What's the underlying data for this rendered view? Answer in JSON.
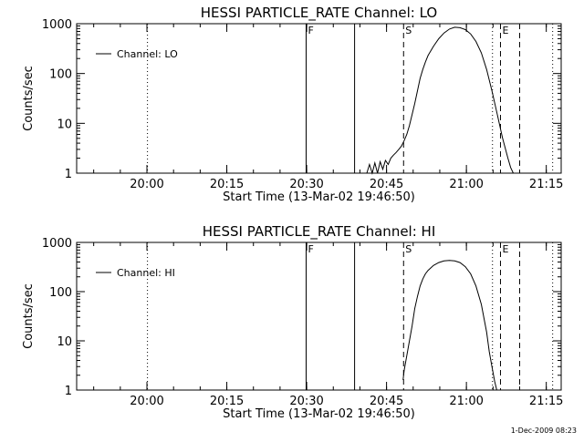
{
  "stamp": "1-Dec-2009 08:23",
  "chart_data": [
    {
      "type": "line",
      "title": "HESSI PARTICLE_RATE Channel: LO",
      "xlabel": "Start Time (13-Mar-02 19:46:50)",
      "ylabel": "Counts/sec",
      "y_scale": "log",
      "ylim": [
        1,
        1000
      ],
      "y_ticks": [
        "1",
        "10",
        "100",
        "1000"
      ],
      "x_unit": "minutes after 19:46:50",
      "xlim": [
        0,
        91
      ],
      "x_ticks": [
        {
          "label": "20:00",
          "value": 13.2
        },
        {
          "label": "20:15",
          "value": 28.2
        },
        {
          "label": "20:30",
          "value": 43.2
        },
        {
          "label": "20:45",
          "value": 58.2
        },
        {
          "label": "21:00",
          "value": 73.2
        },
        {
          "label": "21:15",
          "value": 88.2
        }
      ],
      "legend": {
        "label": "Channel: LO",
        "position": "top-left"
      },
      "markers": [
        {
          "value": 13.3,
          "style": "dotted",
          "label": ""
        },
        {
          "value": 43.1,
          "style": "solid",
          "label": "F"
        },
        {
          "value": 52.2,
          "style": "solid",
          "label": ""
        },
        {
          "value": 61.4,
          "style": "dashed",
          "label": "S"
        },
        {
          "value": 78.1,
          "style": "dotted",
          "label": ""
        },
        {
          "value": 79.6,
          "style": "dashed",
          "label": "E"
        },
        {
          "value": 83.2,
          "style": "dashed",
          "label": ""
        },
        {
          "value": 89.4,
          "style": "dotted",
          "label": ""
        }
      ],
      "series": [
        {
          "x": [
            54.5,
            55.0,
            55.5,
            56.0,
            56.5,
            57.0,
            57.5,
            58.0,
            58.5,
            59.0,
            59.5,
            60.0,
            60.5,
            61.0,
            61.5,
            62.0,
            62.5,
            63.0,
            63.5,
            64.0,
            64.5,
            65.0,
            65.5,
            66.0,
            67.0,
            68.0,
            69.0,
            70.0,
            71.0,
            72.0,
            73.0,
            74.0,
            75.0,
            76.0,
            77.0,
            78.0,
            79.0,
            80.0,
            81.0,
            81.5,
            82.0
          ],
          "y": [
            1,
            1.5,
            1,
            1.6,
            1,
            1.7,
            1.2,
            1.8,
            1.5,
            2.0,
            2.3,
            2.6,
            3.0,
            3.5,
            4.5,
            6,
            9,
            15,
            25,
            45,
            80,
            120,
            170,
            230,
            350,
            500,
            650,
            780,
            850,
            830,
            760,
            620,
            440,
            260,
            120,
            45,
            15,
            5,
            2,
            1.3,
            1
          ]
        }
      ]
    },
    {
      "type": "line",
      "title": "HESSI PARTICLE_RATE Channel: HI",
      "xlabel": "Start Time (13-Mar-02 19:46:50)",
      "ylabel": "Counts/sec",
      "y_scale": "log",
      "ylim": [
        1,
        1000
      ],
      "y_ticks": [
        "1",
        "10",
        "100",
        "1000"
      ],
      "x_unit": "minutes after 19:46:50",
      "xlim": [
        0,
        91
      ],
      "x_ticks": [
        {
          "label": "20:00",
          "value": 13.2
        },
        {
          "label": "20:15",
          "value": 28.2
        },
        {
          "label": "20:30",
          "value": 43.2
        },
        {
          "label": "20:45",
          "value": 58.2
        },
        {
          "label": "21:00",
          "value": 73.2
        },
        {
          "label": "21:15",
          "value": 88.2
        }
      ],
      "legend": {
        "label": "Channel: HI",
        "position": "top-left"
      },
      "markers": [
        {
          "value": 13.3,
          "style": "dotted",
          "label": ""
        },
        {
          "value": 43.1,
          "style": "solid",
          "label": "F"
        },
        {
          "value": 52.2,
          "style": "solid",
          "label": ""
        },
        {
          "value": 61.4,
          "style": "dashed",
          "label": "S"
        },
        {
          "value": 78.1,
          "style": "dotted",
          "label": ""
        },
        {
          "value": 79.6,
          "style": "dashed",
          "label": "E"
        },
        {
          "value": 83.2,
          "style": "dashed",
          "label": ""
        },
        {
          "value": 89.4,
          "style": "dotted",
          "label": ""
        }
      ],
      "series": [
        {
          "x": [
            61.3,
            61.5,
            62.0,
            62.5,
            63.0,
            63.5,
            64.0,
            64.5,
            65.0,
            65.5,
            66.0,
            67.0,
            68.0,
            69.0,
            70.0,
            71.0,
            72.0,
            73.0,
            74.0,
            75.0,
            76.0,
            77.0,
            77.5,
            78.0,
            78.5,
            78.9
          ],
          "y": [
            1.6,
            2.5,
            5,
            10,
            20,
            45,
            80,
            130,
            180,
            230,
            270,
            340,
            390,
            420,
            430,
            420,
            390,
            320,
            230,
            130,
            55,
            15,
            6,
            3,
            1.5,
            1
          ]
        }
      ]
    }
  ]
}
